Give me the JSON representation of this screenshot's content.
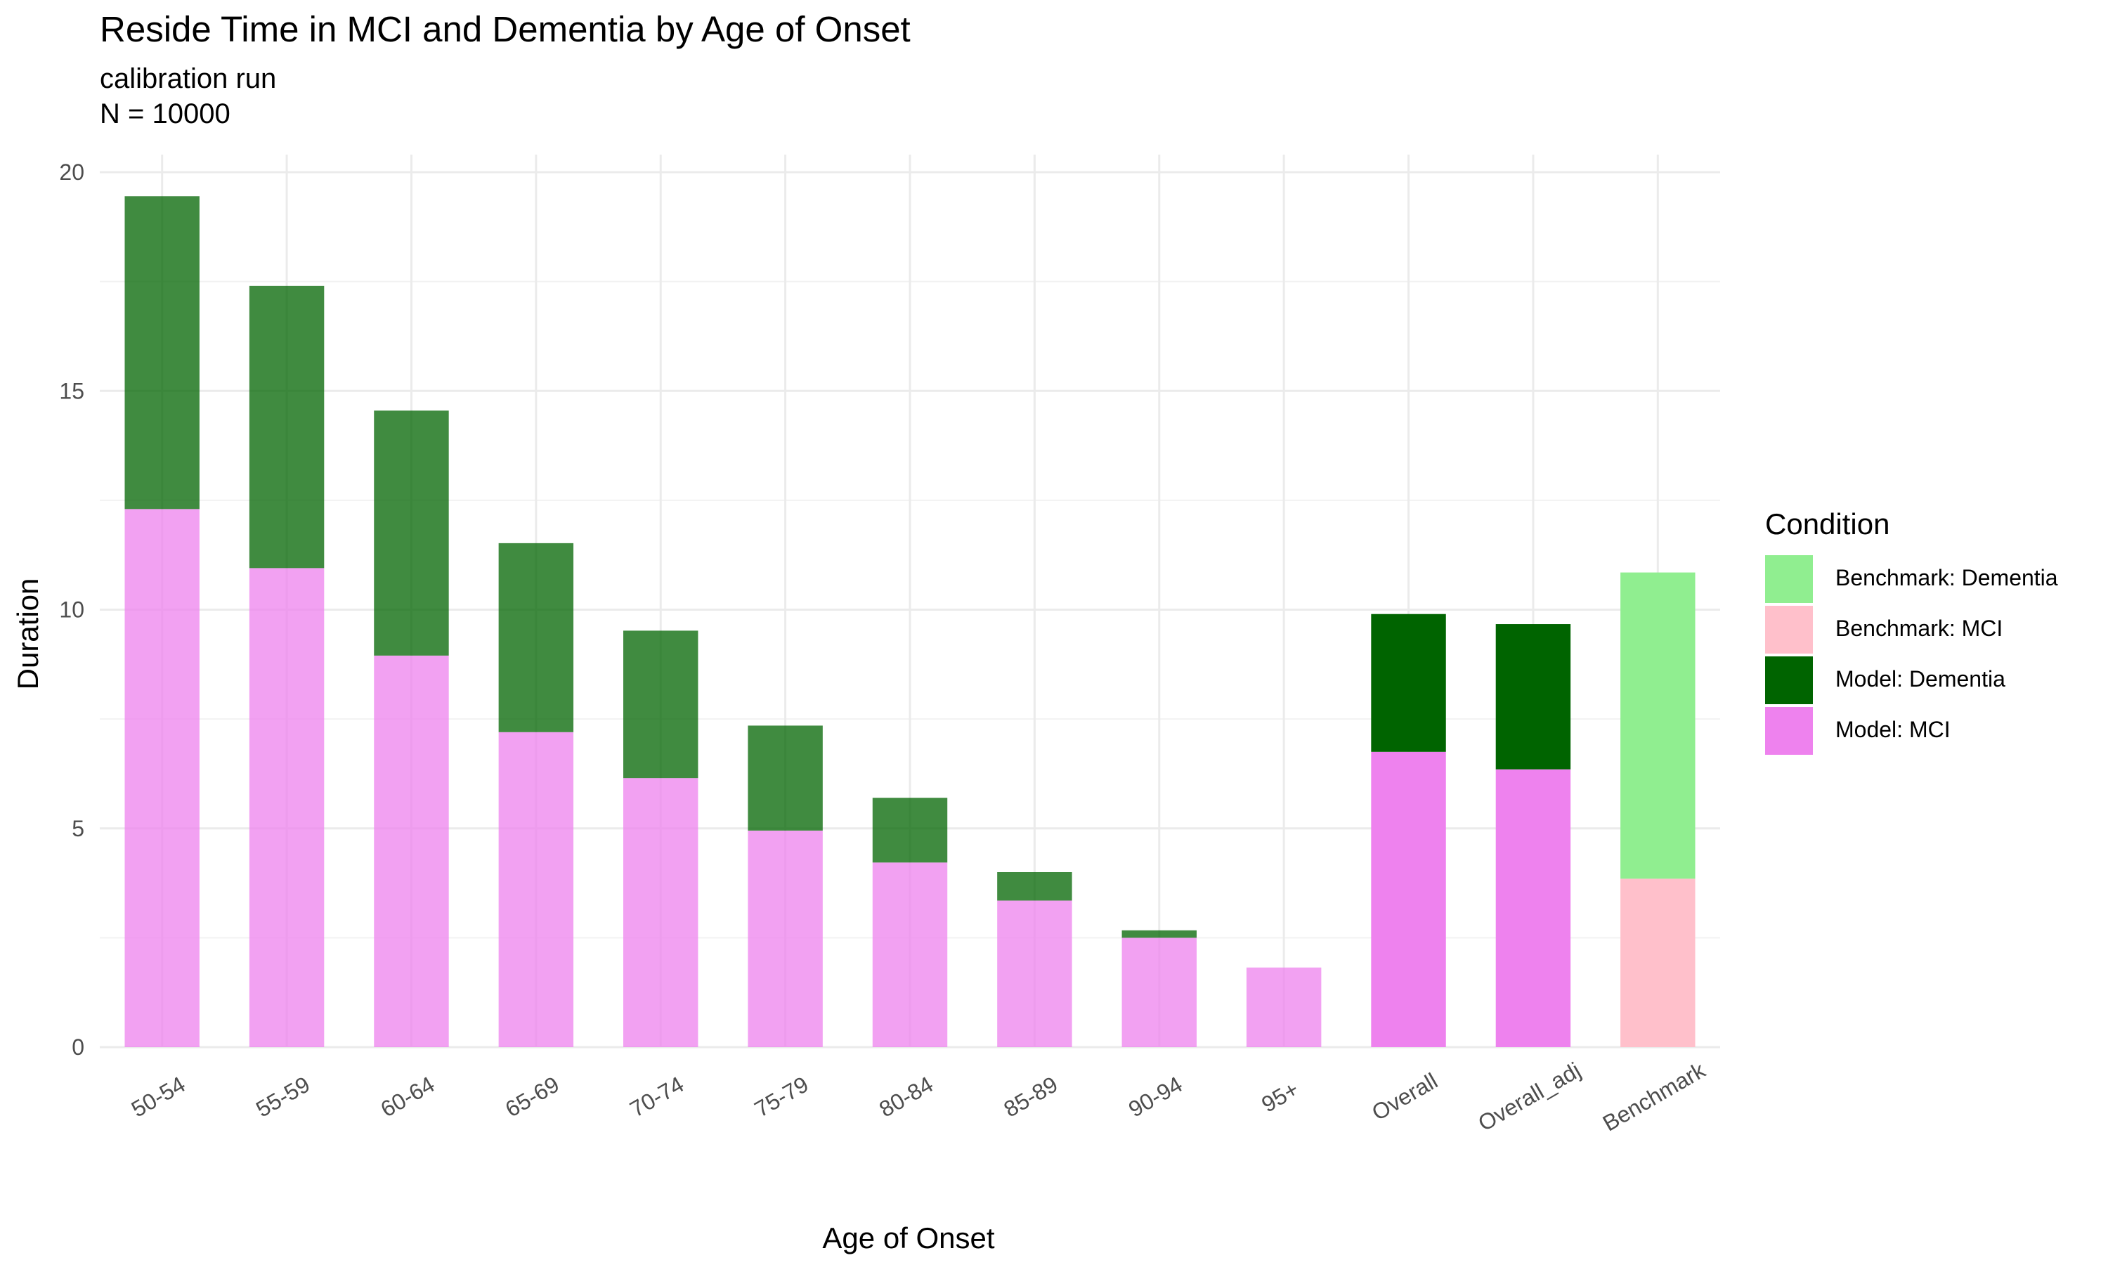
{
  "chart_data": {
    "type": "bar",
    "stacked": true,
    "title": "Reside Time in MCI and Dementia by Age of Onset",
    "subtitle": [
      "calibration run",
      "N = 10000"
    ],
    "xlabel": "Age of Onset",
    "ylabel": "Duration",
    "ylim": [
      0,
      20
    ],
    "yticks": [
      0,
      5,
      10,
      15,
      20
    ],
    "grid": true,
    "legend": {
      "title": "Condition",
      "position": "right",
      "entries": [
        {
          "label": "Benchmark: Dementia",
          "color": "#90EE90"
        },
        {
          "label": "Benchmark: MCI",
          "color": "#FFC0CB"
        },
        {
          "label": "Model: Dementia",
          "color": "#006400"
        },
        {
          "label": "Model: MCI",
          "color": "#EE82EE"
        }
      ]
    },
    "categories": [
      "50-54",
      "55-59",
      "60-64",
      "65-69",
      "70-74",
      "75-79",
      "80-84",
      "85-89",
      "90-94",
      "95+",
      "Overall",
      "Overall_adj",
      "Benchmark"
    ],
    "series": [
      {
        "name": "Model: MCI",
        "color": "#EE82EE",
        "values": [
          12.3,
          10.95,
          8.95,
          7.2,
          6.15,
          4.95,
          4.22,
          3.35,
          2.5,
          1.82,
          6.75,
          6.35,
          null
        ]
      },
      {
        "name": "Model: Dementia",
        "color": "#006400",
        "values": [
          7.15,
          6.45,
          5.6,
          4.32,
          3.37,
          2.4,
          1.48,
          0.65,
          0.17,
          0.0,
          3.15,
          3.32,
          null
        ]
      },
      {
        "name": "Benchmark: MCI",
        "color": "#FFC0CB",
        "values": [
          null,
          null,
          null,
          null,
          null,
          null,
          null,
          null,
          null,
          null,
          null,
          null,
          3.85
        ]
      },
      {
        "name": "Benchmark: Dementia",
        "color": "#90EE90",
        "values": [
          null,
          null,
          null,
          null,
          null,
          null,
          null,
          null,
          null,
          null,
          null,
          null,
          7.0
        ]
      }
    ],
    "faded_categories": [
      "50-54",
      "55-59",
      "60-64",
      "65-69",
      "70-74",
      "75-79",
      "80-84",
      "85-89",
      "90-94",
      "95+"
    ]
  }
}
